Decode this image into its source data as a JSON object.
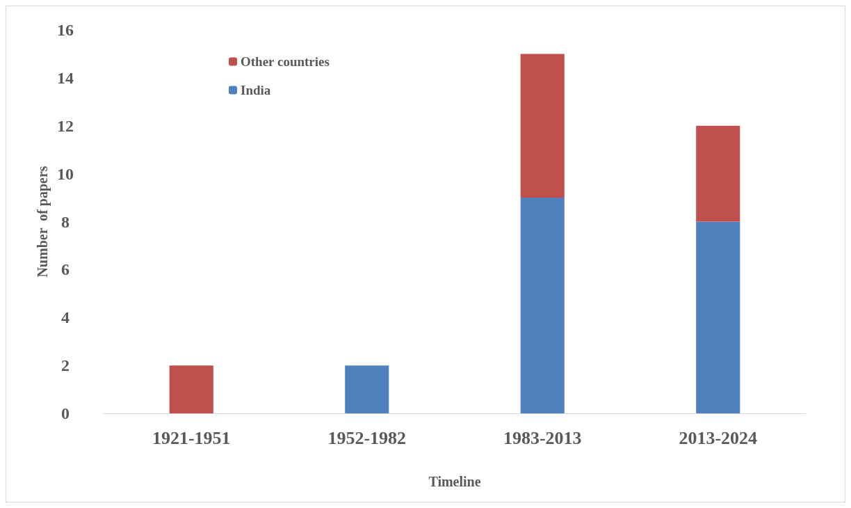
{
  "chart_data": {
    "type": "bar",
    "stacked": true,
    "xlabel": "Timeline",
    "ylabel": "Number  of papers",
    "categories": [
      "1921-1951",
      "1952-1982",
      "1983-2013",
      "2013-2024"
    ],
    "series": [
      {
        "name": "India",
        "color": "#4f81bd",
        "values": [
          0,
          2,
          9,
          8
        ]
      },
      {
        "name": "Other countries",
        "color": "#c0504d",
        "values": [
          2,
          0,
          6,
          4
        ]
      }
    ],
    "ylim": [
      0,
      16
    ],
    "yticks": [
      0,
      2,
      4,
      6,
      8,
      10,
      12,
      14,
      16
    ],
    "grid": false,
    "legend": "top left"
  }
}
